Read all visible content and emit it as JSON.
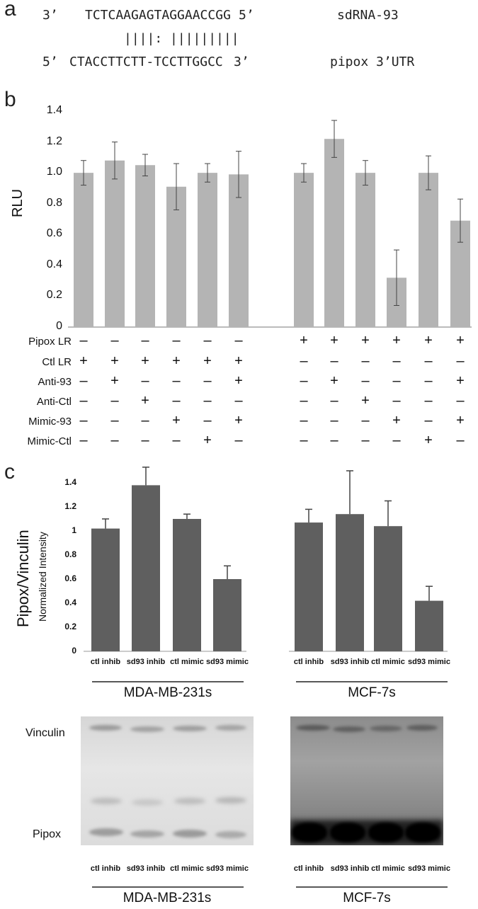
{
  "panel_labels": {
    "a": "a",
    "b": "b",
    "c": "c"
  },
  "panel_a": {
    "top_left": "3’",
    "top_seq": "TCTCAAGAGTAGGAACCGG",
    "top_right": "5’",
    "top_name": "sdRNA-93",
    "pairing": "||||: |||||||||",
    "bottom_left": "5’",
    "bottom_seq": "CTACCTTCTT-TCCTTGGCC",
    "bottom_right": "3’",
    "bottom_name": "pipox 3’UTR"
  },
  "colors": {
    "bar_b": "#b4b4b4",
    "bar_c": "#5f5f5f"
  },
  "chart_data": [
    {
      "type": "bar",
      "title": "",
      "xlabel": "",
      "ylabel": "RLU",
      "ylim": [
        0,
        1.4
      ],
      "yticks": [
        "0",
        "0.2",
        "0.4",
        "0.6",
        "0.8",
        "1.0",
        "1.2",
        "1.4"
      ],
      "grid": false,
      "values": [
        1.0,
        1.08,
        1.05,
        0.91,
        1.0,
        0.99,
        1.0,
        1.22,
        1.0,
        0.32,
        1.0,
        0.69
      ],
      "errors": [
        0.08,
        0.12,
        0.07,
        0.15,
        0.06,
        0.15,
        0.06,
        0.12,
        0.08,
        0.18,
        0.11,
        0.14
      ],
      "conditions": {
        "rows": [
          "Pipox LR",
          "Ctl LR",
          "Anti-93",
          "Anti-Ctl",
          "Mimic-93",
          "Mimic-Ctl"
        ],
        "signs": [
          [
            "–",
            "–",
            "–",
            "–",
            "–",
            "–",
            "+",
            "+",
            "+",
            "+",
            "+",
            "+"
          ],
          [
            "+",
            "+",
            "+",
            "+",
            "+",
            "+",
            "–",
            "–",
            "–",
            "–",
            "–",
            "–"
          ],
          [
            "–",
            "+",
            "–",
            "–",
            "–",
            "+",
            "–",
            "+",
            "–",
            "–",
            "–",
            "+"
          ],
          [
            "–",
            "–",
            "+",
            "–",
            "–",
            "–",
            "–",
            "–",
            "+",
            "–",
            "–",
            "–"
          ],
          [
            "–",
            "–",
            "–",
            "+",
            "–",
            "+",
            "–",
            "–",
            "–",
            "+",
            "–",
            "+"
          ],
          [
            "–",
            "–",
            "–",
            "–",
            "+",
            "–",
            "–",
            "–",
            "–",
            "–",
            "+",
            "–"
          ]
        ]
      }
    },
    {
      "type": "bar",
      "title": "",
      "ylabel": "Pipox/Vinculin",
      "ylabel_sub": "Normalized Intensity",
      "ylim": [
        0,
        1.4
      ],
      "yticks": [
        "0",
        "0.2",
        "0.4",
        "0.6",
        "0.8",
        "1",
        "1.2",
        "1.4"
      ],
      "categories": [
        "ctl inhib",
        "sd93 inhib",
        "ctl mimic",
        "sd93 mimic"
      ],
      "groups": [
        {
          "name": "MDA-MB-231s",
          "values": [
            1.02,
            1.38,
            1.1,
            0.6
          ],
          "errors": [
            0.08,
            0.15,
            0.04,
            0.11
          ]
        },
        {
          "name": "MCF-7s",
          "values": [
            1.07,
            1.14,
            1.04,
            0.42
          ],
          "errors": [
            0.11,
            0.36,
            0.21,
            0.12
          ]
        }
      ]
    }
  ],
  "blot": {
    "band_labels": [
      "Vinculin",
      "Pipox"
    ],
    "lanes": [
      "ctl inhib",
      "sd93 inhib",
      "ctl mimic",
      "sd93 mimic"
    ],
    "groups": [
      "MDA-MB-231s",
      "MCF-7s"
    ]
  }
}
